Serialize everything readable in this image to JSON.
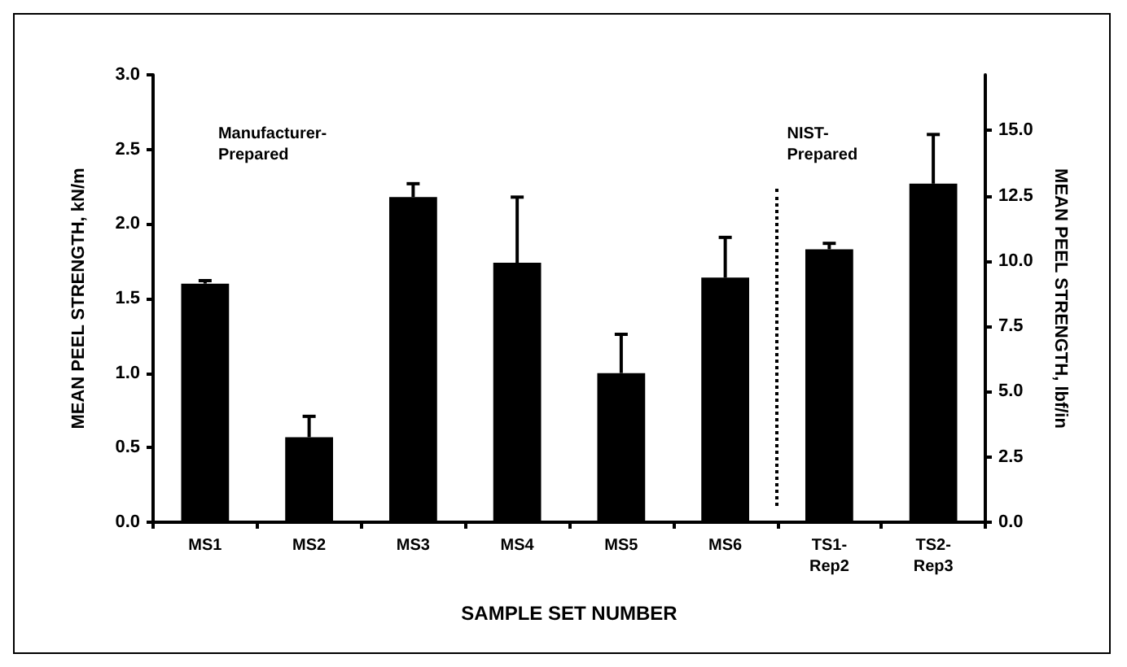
{
  "chart_data": {
    "type": "bar",
    "xlabel": "SAMPLE SET NUMBER",
    "ylabel": "MEAN PEEL STRENGTH, kN/m",
    "y2label": "MEAN PEEL STRENGTH, lbf/in",
    "categories": [
      "MS1",
      "MS2",
      "MS3",
      "MS4",
      "MS5",
      "MS6",
      "TS1-\nRep2",
      "TS2-\nRep3"
    ],
    "series": [
      {
        "color": "#000000",
        "values": [
          1.6,
          0.57,
          2.18,
          1.74,
          1.0,
          1.64,
          1.83,
          2.27
        ],
        "errors": [
          [
            1.6,
            1.62
          ],
          [
            0.57,
            0.71
          ],
          [
            2.18,
            2.27
          ],
          [
            1.74,
            2.18
          ],
          [
            1.0,
            1.26
          ],
          [
            1.64,
            1.91
          ],
          [
            1.83,
            1.87
          ],
          [
            2.27,
            2.6
          ]
        ]
      }
    ],
    "ylim": [
      0,
      3.0
    ],
    "yticks": [
      {
        "value": 0,
        "label": "0.0"
      },
      {
        "value": 0.5,
        "label": "0.5"
      },
      {
        "value": 1.0,
        "label": "1.0"
      },
      {
        "value": 1.5,
        "label": "1.5"
      },
      {
        "value": 2.0,
        "label": "2.0"
      },
      {
        "value": 2.5,
        "label": "2.5"
      },
      {
        "value": 3.0,
        "label": "3.0"
      }
    ],
    "y2lim": [
      0,
      17.13
    ],
    "y2ticks": [
      {
        "value": 0,
        "label": "0.0"
      },
      {
        "value": 2.5,
        "label": "2.5"
      },
      {
        "value": 5,
        "label": "5.0"
      },
      {
        "value": 7.5,
        "label": "7.5"
      },
      {
        "value": 10,
        "label": "10.0"
      },
      {
        "value": 12.5,
        "label": "12.5"
      },
      {
        "value": 15,
        "label": "15.0"
      }
    ],
    "annotations": [
      "Manufacturer-\nPrepared",
      "NIST-\nPrepared"
    ]
  }
}
